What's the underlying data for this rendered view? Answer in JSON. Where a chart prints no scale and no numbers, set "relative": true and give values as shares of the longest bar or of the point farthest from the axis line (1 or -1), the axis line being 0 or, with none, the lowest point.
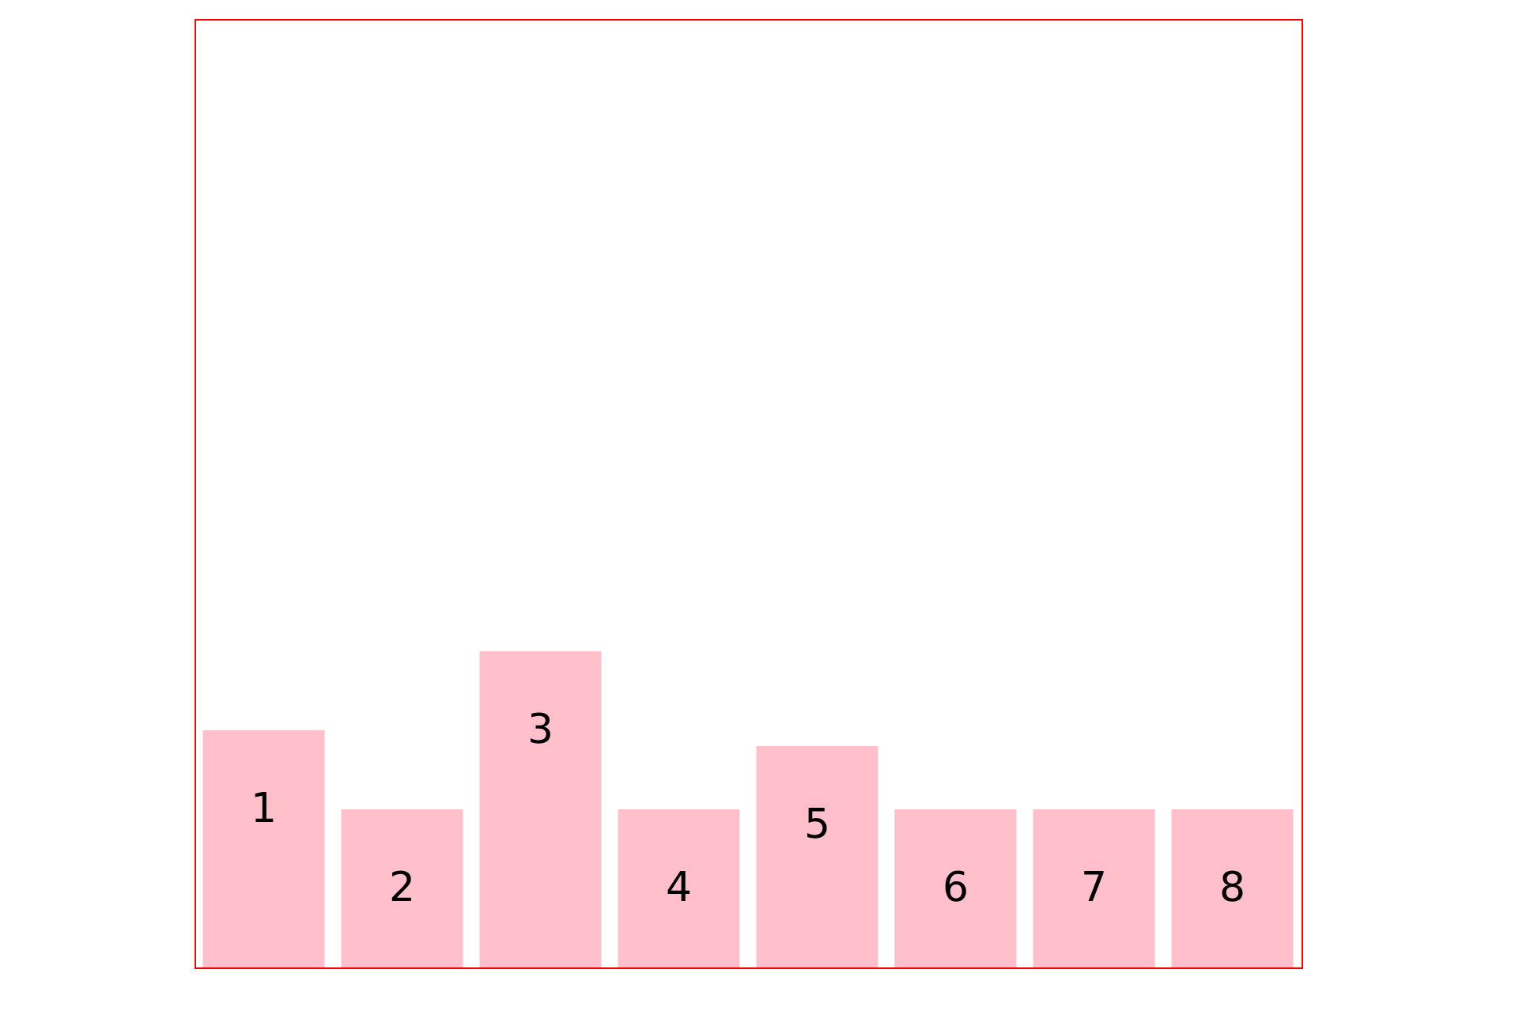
{
  "chart_data": {
    "type": "bar",
    "relative": true,
    "categories": [
      "1",
      "2",
      "3",
      "4",
      "5",
      "6",
      "7",
      "8"
    ],
    "values": [
      0.75,
      0.5,
      1,
      0.5,
      0.7,
      0.5,
      0.5,
      0.5
    ],
    "color": "#ffc0cb"
  }
}
